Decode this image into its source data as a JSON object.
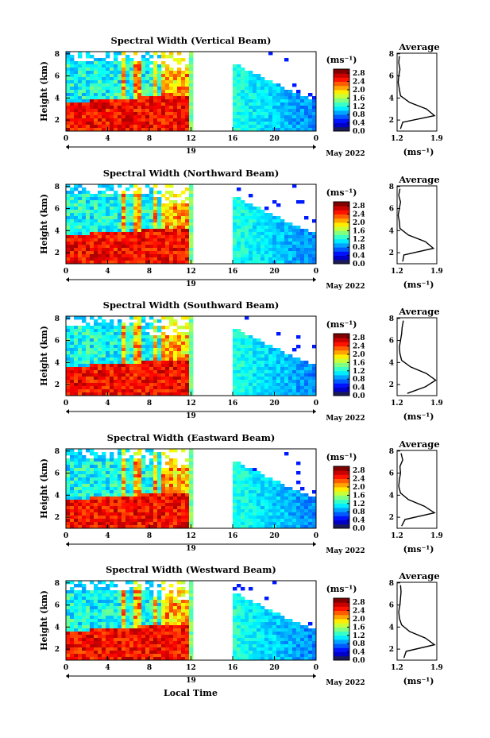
{
  "figure": {
    "xlabel": "Local Time",
    "colorbar_unit": "(ms⁻¹)",
    "colorbar_ticks": [
      "0.0",
      "0.4",
      "0.8",
      "1.2",
      "1.6",
      "2.0",
      "2.4",
      "2.8"
    ],
    "colorbar_range": [
      0.0,
      3.0
    ],
    "time_ticks": [
      "0",
      "4",
      "8",
      "12",
      "16",
      "20",
      "0"
    ],
    "time_range_hours": [
      0,
      24
    ],
    "day_label": "19",
    "month_label": "May 2022",
    "height_label": "Height (km)",
    "height_ticks": [
      "2",
      "4",
      "6",
      "8"
    ],
    "height_range_km": [
      1,
      8.2
    ],
    "avg_title": "Average",
    "avg_xticks": [
      "1.2",
      "1.9"
    ],
    "avg_xrange": [
      1.2,
      1.9
    ],
    "avg_yticks": [
      "2",
      "4",
      "6",
      "8"
    ],
    "avg_unit": "(ms⁻¹)",
    "colors": {
      "red": "#e8321e",
      "cyan": "#43c8e8",
      "blue": "#2c3cc8",
      "green": "#b4e464"
    }
  },
  "chart_data": [
    {
      "type": "heatmap",
      "title": "Spectral Width (Vertical Beam)",
      "ylabel": "Height (km)",
      "data_gap_hours": [
        12,
        16
      ],
      "profile": {
        "height_km": [
          1.2,
          1.8,
          2.4,
          3.0,
          3.6,
          4.2,
          4.8,
          5.4,
          6.0,
          6.6,
          7.2,
          7.8
        ],
        "value": [
          1.26,
          1.3,
          1.86,
          1.72,
          1.42,
          1.26,
          1.24,
          1.22,
          1.23,
          1.25,
          1.23,
          1.24
        ]
      }
    },
    {
      "type": "heatmap",
      "title": "Spectral Width (Northward Beam)",
      "ylabel": "Height (km)",
      "data_gap_hours": [
        12,
        16
      ],
      "profile": {
        "height_km": [
          1.2,
          1.8,
          2.4,
          3.0,
          3.6,
          4.2,
          4.8,
          5.4,
          6.0,
          6.6,
          7.2,
          7.8
        ],
        "value": [
          1.3,
          1.32,
          1.84,
          1.7,
          1.4,
          1.25,
          1.24,
          1.22,
          1.24,
          1.26,
          1.23,
          1.25
        ]
      }
    },
    {
      "type": "heatmap",
      "title": "Spectral Width (Southward Beam)",
      "ylabel": "Height (km)",
      "data_gap_hours": [
        12,
        16
      ],
      "profile": {
        "height_km": [
          1.2,
          1.8,
          2.4,
          3.0,
          3.6,
          4.2,
          4.8,
          5.4,
          6.0,
          6.6,
          7.2,
          7.8
        ],
        "value": [
          1.38,
          1.7,
          1.88,
          1.72,
          1.44,
          1.28,
          1.25,
          1.24,
          1.26,
          1.28,
          1.29,
          1.31
        ]
      }
    },
    {
      "type": "heatmap",
      "title": "Spectral Width (Eastward Beam)",
      "ylabel": "Height (km)",
      "data_gap_hours": [
        12,
        16
      ],
      "profile": {
        "height_km": [
          1.2,
          1.8,
          2.4,
          3.0,
          3.6,
          4.2,
          4.8,
          5.4,
          6.0,
          6.6,
          7.2,
          7.8
        ],
        "value": [
          1.28,
          1.34,
          1.86,
          1.68,
          1.4,
          1.26,
          1.23,
          1.24,
          1.26,
          1.25,
          1.3,
          1.27
        ]
      }
    },
    {
      "type": "heatmap",
      "title": "Spectral Width (Westward Beam)",
      "ylabel": "Height (km)",
      "data_gap_hours": [
        12,
        16
      ],
      "profile": {
        "height_km": [
          1.2,
          1.8,
          2.4,
          3.0,
          3.6,
          4.2,
          4.8,
          5.4,
          6.0,
          6.6,
          7.2,
          7.8
        ],
        "value": [
          1.32,
          1.36,
          1.86,
          1.7,
          1.42,
          1.28,
          1.24,
          1.23,
          1.25,
          1.26,
          1.27,
          1.26
        ]
      }
    }
  ]
}
